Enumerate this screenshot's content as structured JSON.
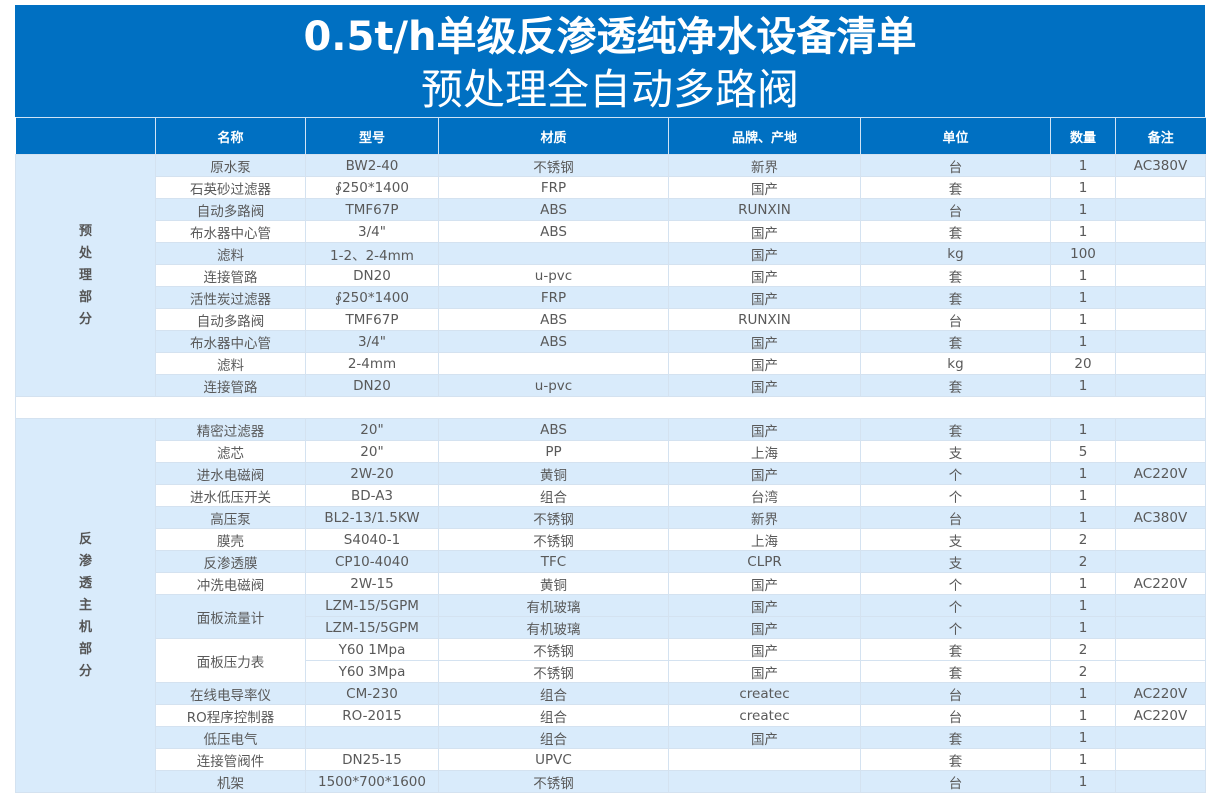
{
  "title": "0.5t/h单级反渗透纯净水设备清单",
  "subtitle": "预处理全自动多路阀",
  "columns": [
    "",
    "名称",
    "型号",
    "材质",
    "品牌、产地",
    "单位",
    "数量",
    "备注"
  ],
  "colors": {
    "header": "#0070c2",
    "stripe": "#d9ebfb"
  },
  "sections": [
    {
      "label": "预处理部分",
      "rows": [
        {
          "name": "原水泵",
          "items": [
            [
              "BW2-40",
              "不锈钢",
              "新界",
              "台",
              "1",
              "AC380V"
            ]
          ]
        },
        {
          "name": "石英砂过滤器",
          "items": [
            [
              "∮250*1400",
              "FRP",
              "国产",
              "套",
              "1",
              ""
            ]
          ]
        },
        {
          "name": "自动多路阀",
          "items": [
            [
              "TMF67P",
              "ABS",
              "RUNXIN",
              "台",
              "1",
              ""
            ]
          ]
        },
        {
          "name": "布水器中心管",
          "items": [
            [
              "3/4\"",
              "ABS",
              "国产",
              "套",
              "1",
              ""
            ]
          ]
        },
        {
          "name": "滤料",
          "items": [
            [
              "1-2、2-4mm",
              "",
              "国产",
              "kg",
              "100",
              ""
            ]
          ]
        },
        {
          "name": "连接管路",
          "items": [
            [
              "DN20",
              "u-pvc",
              "国产",
              "套",
              "1",
              ""
            ]
          ]
        },
        {
          "name": "活性炭过滤器",
          "items": [
            [
              "∮250*1400",
              "FRP",
              "国产",
              "套",
              "1",
              ""
            ]
          ]
        },
        {
          "name": "自动多路阀",
          "items": [
            [
              "TMF67P",
              "ABS",
              "RUNXIN",
              "台",
              "1",
              ""
            ]
          ]
        },
        {
          "name": "布水器中心管",
          "items": [
            [
              "3/4\"",
              "ABS",
              "国产",
              "套",
              "1",
              ""
            ]
          ]
        },
        {
          "name": "滤料",
          "items": [
            [
              "2-4mm",
              "",
              "国产",
              "kg",
              "20",
              ""
            ]
          ]
        },
        {
          "name": "连接管路",
          "items": [
            [
              "DN20",
              "u-pvc",
              "国产",
              "套",
              "1",
              ""
            ]
          ]
        }
      ]
    },
    {
      "label": "反渗透主机部分",
      "rows": [
        {
          "name": "精密过滤器",
          "items": [
            [
              "20\"",
              "ABS",
              "国产",
              "套",
              "1",
              ""
            ]
          ]
        },
        {
          "name": "滤芯",
          "items": [
            [
              "20\"",
              "PP",
              "上海",
              "支",
              "5",
              ""
            ]
          ]
        },
        {
          "name": "进水电磁阀",
          "items": [
            [
              "2W-20",
              "黄铜",
              "国产",
              "个",
              "1",
              "AC220V"
            ]
          ]
        },
        {
          "name": "进水低压开关",
          "items": [
            [
              "BD-A3",
              "组合",
              "台湾",
              "个",
              "1",
              ""
            ]
          ]
        },
        {
          "name": "高压泵",
          "items": [
            [
              "BL2-13/1.5KW",
              "不锈钢",
              "新界",
              "台",
              "1",
              "AC380V"
            ]
          ]
        },
        {
          "name": "膜壳",
          "items": [
            [
              "S4040-1",
              "不锈钢",
              "上海",
              "支",
              "2",
              ""
            ]
          ]
        },
        {
          "name": "反渗透膜",
          "items": [
            [
              "CP10-4040",
              "TFC",
              "CLPR",
              "支",
              "2",
              ""
            ]
          ]
        },
        {
          "name": "冲洗电磁阀",
          "items": [
            [
              "2W-15",
              "黄铜",
              "国产",
              "个",
              "1",
              "AC220V"
            ]
          ]
        },
        {
          "name": "面板流量计",
          "items": [
            [
              "LZM-15/5GPM",
              "有机玻璃",
              "国产",
              "个",
              "1",
              ""
            ],
            [
              "LZM-15/5GPM",
              "有机玻璃",
              "国产",
              "个",
              "1",
              ""
            ]
          ]
        },
        {
          "name": "面板压力表",
          "items": [
            [
              "Y60 1Mpa",
              "不锈钢",
              "国产",
              "套",
              "2",
              ""
            ],
            [
              "Y60 3Mpa",
              "不锈钢",
              "国产",
              "套",
              "2",
              ""
            ]
          ]
        },
        {
          "name": "在线电导率仪",
          "items": [
            [
              "CM-230",
              "组合",
              "createc",
              "台",
              "1",
              "AC220V"
            ]
          ]
        },
        {
          "name": "RO程序控制器",
          "items": [
            [
              "RO-2015",
              "组合",
              "createc",
              "台",
              "1",
              "AC220V"
            ]
          ]
        },
        {
          "name": "低压电气",
          "items": [
            [
              "",
              "组合",
              "国产",
              "套",
              "1",
              ""
            ]
          ]
        },
        {
          "name": "连接管阀件",
          "items": [
            [
              "DN25-15",
              "UPVC",
              "",
              "套",
              "1",
              ""
            ]
          ]
        },
        {
          "name": "机架",
          "items": [
            [
              "1500*700*1600",
              "不锈钢",
              "",
              "台",
              "1",
              ""
            ]
          ]
        }
      ]
    }
  ]
}
